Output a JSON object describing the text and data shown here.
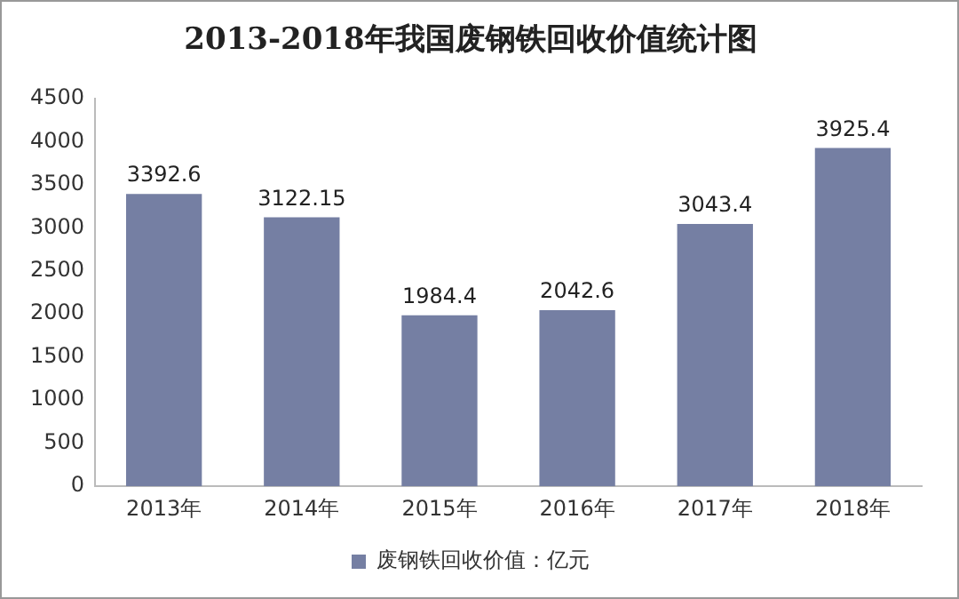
{
  "chart_data": {
    "type": "bar",
    "title": "2013-2018年我国废钢铁回收价值统计图",
    "categories": [
      "2013年",
      "2014年",
      "2015年",
      "2016年",
      "2017年",
      "2018年"
    ],
    "series": [
      {
        "name": "废钢铁回收价值：亿元",
        "color": "#757fa3",
        "values": [
          3392.6,
          3122.15,
          1984.4,
          2042.6,
          3043.4,
          3925.4
        ]
      }
    ],
    "ylim": [
      0,
      4500
    ],
    "yticks": [
      0,
      500,
      1000,
      1500,
      2000,
      2500,
      3000,
      3500,
      4000,
      4500
    ],
    "grid": false,
    "legend": "bottom",
    "data_labels": true
  }
}
